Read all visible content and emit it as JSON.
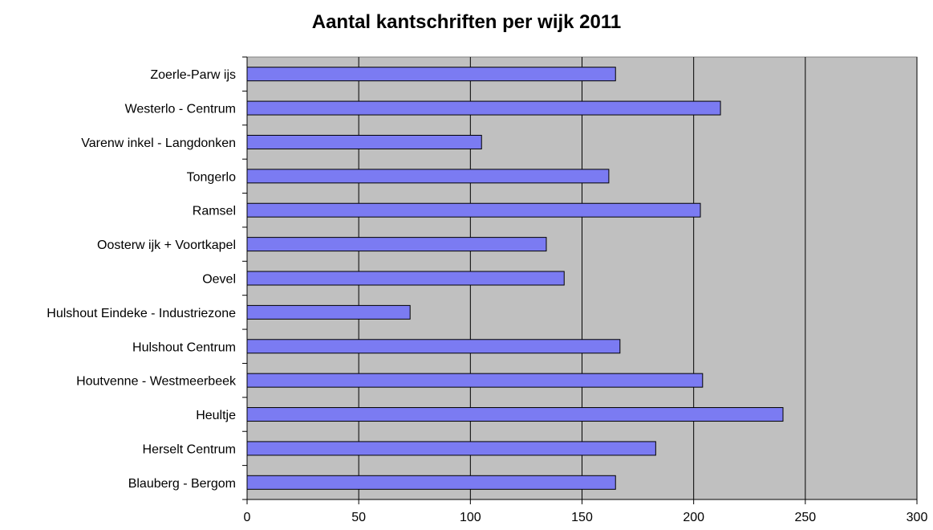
{
  "chart_data": {
    "type": "bar",
    "orientation": "horizontal",
    "title": "Aantal kantschriften per wijk 2011",
    "xlabel": "",
    "ylabel": "",
    "xlim": [
      0,
      300
    ],
    "xticks": [
      0,
      50,
      100,
      150,
      200,
      250,
      300
    ],
    "grid": "vertical",
    "legend": "none",
    "categories": [
      "Zoerle-Parw ijs",
      "Westerlo - Centrum",
      "Varenw inkel - Langdonken",
      "Tongerlo",
      "Ramsel",
      "Oosterw ijk + Voortkapel",
      "Oevel",
      "Hulshout Eindeke - Industriezone",
      "Hulshout Centrum",
      "Houtvenne - Westmeerbeek",
      "Heultje",
      "Herselt Centrum",
      "Blauberg - Bergom"
    ],
    "values": [
      165,
      212,
      105,
      162,
      203,
      134,
      142,
      73,
      167,
      204,
      240,
      183,
      165
    ],
    "colors": {
      "bar": "#7b7bf2",
      "bar_stroke": "#000000",
      "plot_background": "#c0c0c0",
      "grid": "#000000"
    }
  }
}
